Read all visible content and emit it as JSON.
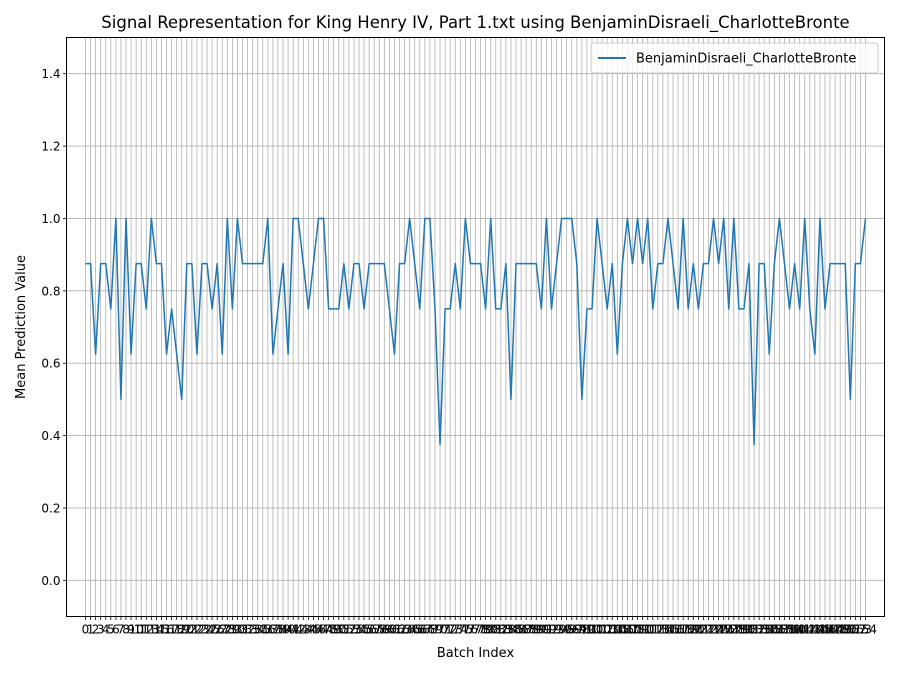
{
  "chart_data": {
    "type": "line",
    "title": "Signal Representation for King Henry IV, Part 1.txt using BenjaminDisraeli_CharlotteBronte",
    "xlabel": "Batch Index",
    "ylabel": "Mean Prediction Value",
    "xlim": [
      -3.75,
      157.75
    ],
    "ylim": [
      -0.1,
      1.5
    ],
    "yticks": [
      0.0,
      0.2,
      0.4,
      0.6,
      0.8,
      1.0,
      1.2,
      1.4
    ],
    "ytick_labels": [
      "0.0",
      "0.2",
      "0.4",
      "0.6",
      "0.8",
      "1.0",
      "1.2",
      "1.4"
    ],
    "grid": true,
    "legend_position": "top-right",
    "series": [
      {
        "name": "BenjaminDisraeli_CharlotteBronte",
        "color": "#1f77b4",
        "values": [
          0.875,
          0.875,
          0.625,
          0.875,
          0.875,
          0.75,
          1.0,
          0.5,
          1.0,
          0.625,
          0.875,
          0.875,
          0.75,
          1.0,
          0.875,
          0.875,
          0.625,
          0.75,
          0.625,
          0.5,
          0.875,
          0.875,
          0.625,
          0.875,
          0.875,
          0.75,
          0.875,
          0.625,
          1.0,
          0.75,
          1.0,
          0.875,
          0.875,
          0.875,
          0.875,
          0.875,
          1.0,
          0.625,
          0.75,
          0.875,
          0.625,
          1.0,
          1.0,
          0.875,
          0.75,
          0.875,
          1.0,
          1.0,
          0.75,
          0.75,
          0.75,
          0.875,
          0.75,
          0.875,
          0.875,
          0.75,
          0.875,
          0.875,
          0.875,
          0.875,
          0.75,
          0.625,
          0.875,
          0.875,
          1.0,
          0.875,
          0.75,
          1.0,
          1.0,
          0.75,
          0.375,
          0.75,
          0.75,
          0.875,
          0.75,
          1.0,
          0.875,
          0.875,
          0.875,
          0.75,
          1.0,
          0.75,
          0.75,
          0.875,
          0.5,
          0.875,
          0.875,
          0.875,
          0.875,
          0.875,
          0.75,
          1.0,
          0.75,
          0.875,
          1.0,
          1.0,
          1.0,
          0.875,
          0.5,
          0.75,
          0.75,
          1.0,
          0.875,
          0.75,
          0.875,
          0.625,
          0.875,
          1.0,
          0.875,
          1.0,
          0.875,
          1.0,
          0.75,
          0.875,
          0.875,
          1.0,
          0.875,
          0.75,
          1.0,
          0.75,
          0.875,
          0.75,
          0.875,
          0.875,
          1.0,
          0.875,
          1.0,
          0.75,
          1.0,
          0.75,
          0.75,
          0.875,
          0.375,
          0.875,
          0.875,
          0.625,
          0.875,
          1.0,
          0.875,
          0.75,
          0.875,
          0.75,
          1.0,
          0.75,
          0.625,
          1.0,
          0.75,
          0.875,
          0.875,
          0.875,
          0.875,
          0.5,
          0.875,
          0.875,
          1.0
        ]
      }
    ]
  }
}
